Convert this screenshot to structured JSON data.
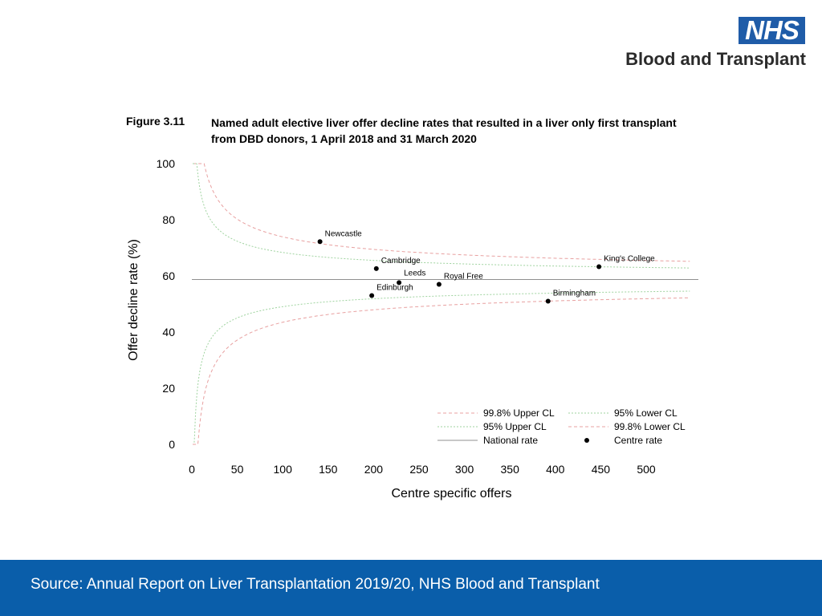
{
  "logo": {
    "mark": "NHS",
    "name": "Blood and Transplant"
  },
  "figure": {
    "number": "Figure 3.11",
    "title": "Named adult elective liver offer decline rates that resulted in a liver only first transplant from DBD donors, 1 April 2018 and 31 March 2020"
  },
  "footer": {
    "source": "Source: Annual Report on Liver Transplantation 2019/20, NHS Blood and Transplant"
  },
  "colors": {
    "footer_bg": "#0a5eaa",
    "nhs_blue": "#1f5ca8",
    "limit_998": "#e8a0a0",
    "limit_95": "#9fd39f",
    "national": "#909090"
  },
  "chart_data": {
    "type": "scatter",
    "xlabel": "Centre specific offers",
    "ylabel": "Offer decline rate (%)",
    "xlim": [
      0,
      550
    ],
    "ylim": [
      0,
      100
    ],
    "x_ticks": [
      0,
      50,
      100,
      150,
      200,
      250,
      300,
      350,
      400,
      450,
      500
    ],
    "y_ticks": [
      0,
      20,
      40,
      60,
      80,
      100
    ],
    "grid": false,
    "national_rate": 58.7,
    "series": [
      {
        "name": "Centre rate",
        "points": [
          {
            "label": "Newcastle",
            "x": 141,
            "y": 72.2
          },
          {
            "label": "Cambridge",
            "x": 203,
            "y": 62.6
          },
          {
            "label": "Leeds",
            "x": 228,
            "y": 57.6
          },
          {
            "label": "Edinburgh",
            "x": 198,
            "y": 53.0
          },
          {
            "label": "Royal Free",
            "x": 272,
            "y": 57.0
          },
          {
            "label": "Birmingham",
            "x": 392,
            "y": 51.0
          },
          {
            "label": "King's College",
            "x": 448,
            "y": 63.3
          }
        ]
      },
      {
        "name": "99.8% Upper CL",
        "z": 3.09
      },
      {
        "name": "95% Upper CL",
        "z": 1.96
      },
      {
        "name": "95% Lower CL",
        "z": -1.96
      },
      {
        "name": "99.8% Lower CL",
        "z": -3.09
      },
      {
        "name": "National rate"
      }
    ],
    "legend": {
      "position": "bottom-right",
      "entries": [
        "99.8% Upper CL",
        "95% Lower CL",
        "95% Upper CL",
        "99.8% Lower CL",
        "National rate",
        "Centre rate"
      ]
    }
  }
}
